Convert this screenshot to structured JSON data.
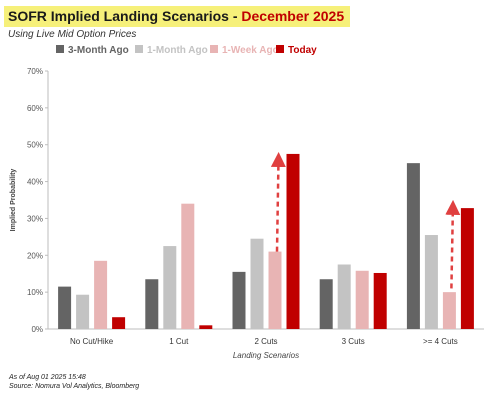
{
  "header": {
    "title": "SOFR Implied Landing Scenarios",
    "title_separator": " - ",
    "title_highlight": "December 2025",
    "subtitle": "Using Live Mid Option Prices"
  },
  "footer": {
    "asof": "As of Aug 01 2025 15:48",
    "source": "Source: Nomura Vol Analytics, Bloomberg"
  },
  "chart_data": {
    "type": "bar",
    "xlabel": "Landing Scenarios",
    "ylabel": "Implied Probability",
    "ylim": [
      0,
      70
    ],
    "yticks": [
      "0%",
      "10%",
      "20%",
      "30%",
      "40%",
      "50%",
      "60%",
      "70%"
    ],
    "categories": [
      "No Cut/Hike",
      "1 Cut",
      "2 Cuts",
      "3 Cuts",
      ">= 4 Cuts"
    ],
    "legend_position": "top",
    "grid": false,
    "series": [
      {
        "name": "3-Month Ago",
        "color": "#646464",
        "values": [
          11.5,
          13.5,
          15.5,
          13.5,
          45
        ]
      },
      {
        "name": "1-Month Ago",
        "color": "#c3c3c3",
        "values": [
          9.3,
          22.5,
          24.5,
          17.5,
          25.5
        ]
      },
      {
        "name": "1-Week Ago",
        "color": "#e8b4b4",
        "values": [
          18.5,
          34,
          21,
          15.8,
          10
        ]
      },
      {
        "name": "Today",
        "color": "#c00000",
        "values": [
          3.2,
          1,
          47.5,
          15.2,
          32.8
        ]
      }
    ],
    "annotations": [
      {
        "type": "dashed-arrow",
        "category": "2 Cuts",
        "from": 21,
        "to": 46,
        "color": "#e04040"
      },
      {
        "type": "dashed-arrow",
        "category": ">= 4 Cuts",
        "from": 11,
        "to": 33,
        "color": "#e04040"
      }
    ]
  }
}
